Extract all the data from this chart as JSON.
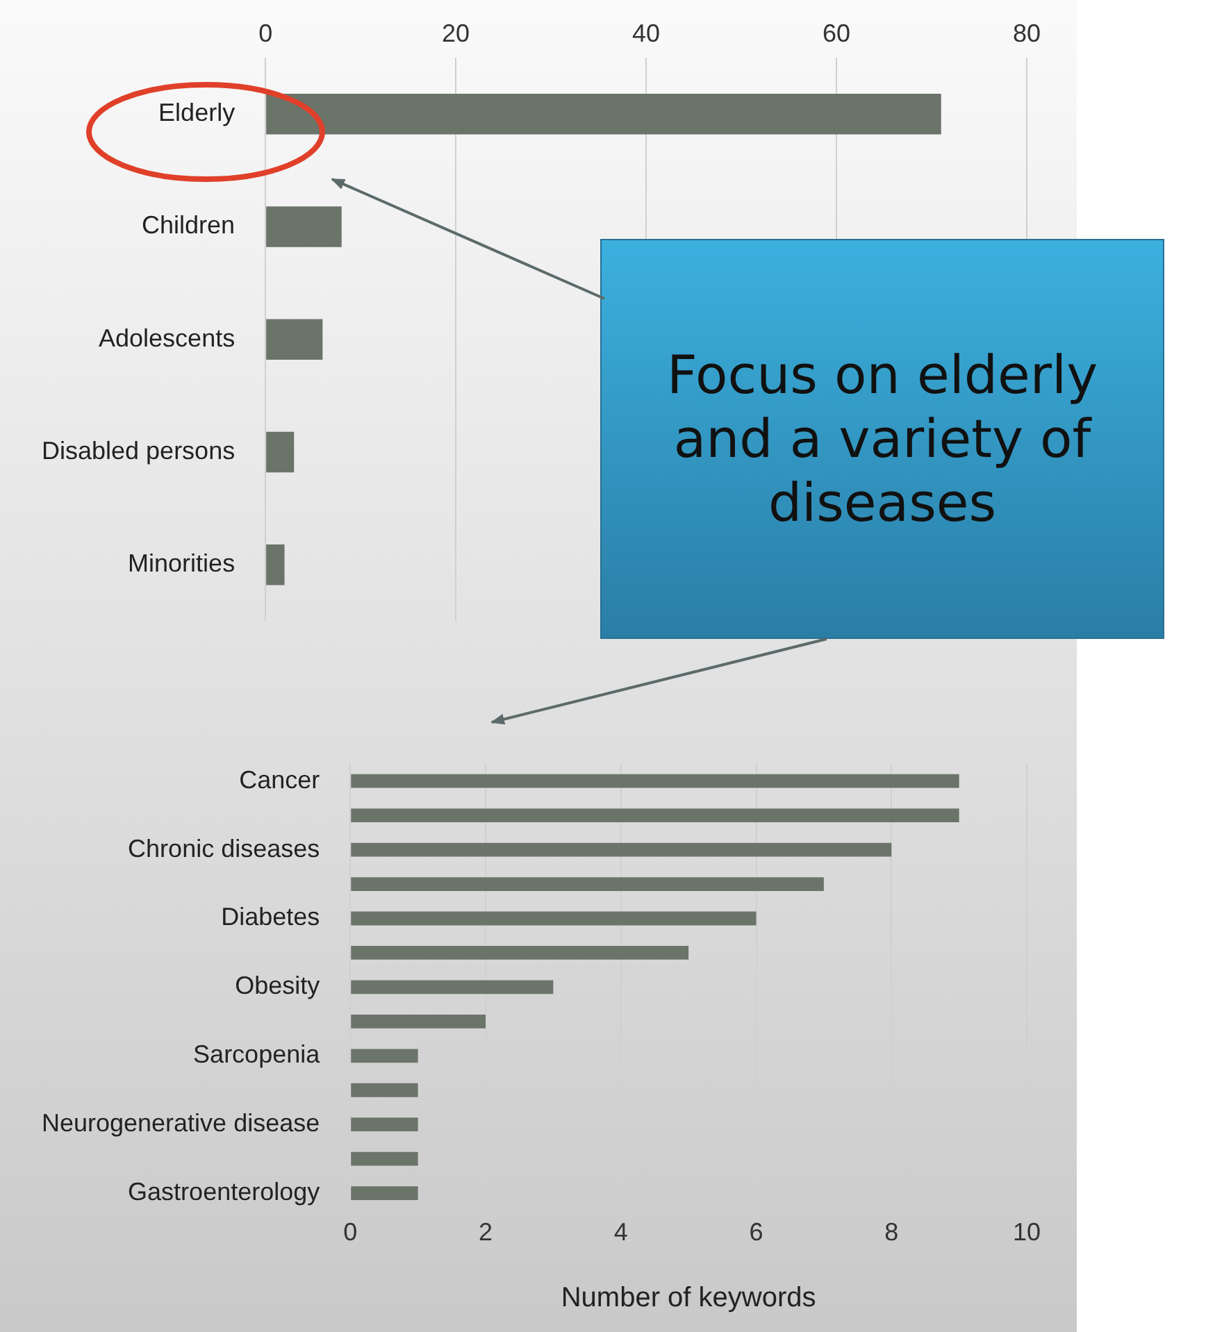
{
  "chart_data": [
    {
      "type": "bar",
      "orientation": "horizontal",
      "categories": [
        "Elderly",
        "Children",
        "Adolescents",
        "Disabled persons",
        "Minorities"
      ],
      "values": [
        71,
        8,
        6,
        3,
        2
      ],
      "color": "#6b7469",
      "xlim": [
        0,
        80
      ],
      "xticks": [
        0,
        20,
        40,
        60,
        80
      ],
      "grid": "x",
      "annotations": [
        "Focus on elderly and a variety of diseases"
      ]
    },
    {
      "type": "bar",
      "orientation": "horizontal",
      "categories": [
        "Cancer",
        null,
        "Chronic diseases",
        null,
        "Diabetes",
        null,
        "Obesity",
        null,
        "Sarcopenia",
        null,
        "Neurogenerative disease",
        null,
        "Gastroenterology"
      ],
      "values": [
        9,
        9,
        8,
        7,
        6,
        5,
        3,
        2,
        1,
        1,
        1,
        1,
        1
      ],
      "color": "#6b7469",
      "xlim": [
        0,
        10
      ],
      "xticks": [
        0,
        2,
        4,
        6,
        8,
        10
      ],
      "grid": "x",
      "xlabel": "Number of keywords"
    }
  ]
}
